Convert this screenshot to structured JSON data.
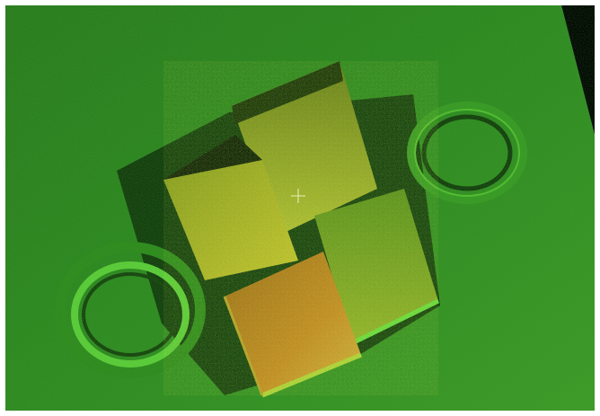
{
  "scene": {
    "kind": "point-cloud",
    "colormap": [
      "#1f5a12",
      "#2f8a1c",
      "#5fbf2a",
      "#c9d23a",
      "#d9a02c"
    ],
    "background": "#000000",
    "border": "#ffffff"
  },
  "objects": [
    {
      "name": "ground-plane"
    },
    {
      "name": "box-top-rear"
    },
    {
      "name": "box-middle-left"
    },
    {
      "name": "box-front-orange"
    },
    {
      "name": "box-right-lower"
    },
    {
      "name": "ring-left"
    },
    {
      "name": "ring-right"
    },
    {
      "name": "crosshair-marker"
    }
  ]
}
